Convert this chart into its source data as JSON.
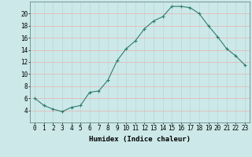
{
  "x": [
    0,
    1,
    2,
    3,
    4,
    5,
    6,
    7,
    8,
    9,
    10,
    11,
    12,
    13,
    14,
    15,
    16,
    17,
    18,
    19,
    20,
    21,
    22,
    23
  ],
  "y": [
    6,
    4.8,
    4.2,
    3.8,
    4.5,
    4.8,
    7.0,
    7.2,
    9.0,
    12.2,
    14.2,
    15.5,
    17.5,
    18.8,
    19.5,
    21.2,
    21.2,
    21.0,
    20.0,
    18.0,
    16.2,
    14.2,
    13.0,
    11.5
  ],
  "xlabel": "Humidex (Indice chaleur)",
  "xlim": [
    -0.5,
    23.5
  ],
  "ylim": [
    2,
    22
  ],
  "yticks": [
    4,
    6,
    8,
    10,
    12,
    14,
    16,
    18,
    20
  ],
  "xtick_labels": [
    "0",
    "1",
    "2",
    "3",
    "4",
    "5",
    "6",
    "7",
    "8",
    "9",
    "10",
    "11",
    "12",
    "13",
    "14",
    "15",
    "16",
    "17",
    "18",
    "19",
    "20",
    "21",
    "22",
    "23"
  ],
  "line_color": "#2e7d6e",
  "marker": "+",
  "bg_color": "#cce8e8",
  "grid_color_h": "#e8b0b0",
  "grid_color_v": "#b8d8d8",
  "label_fontsize": 6.5,
  "tick_fontsize": 5.5
}
